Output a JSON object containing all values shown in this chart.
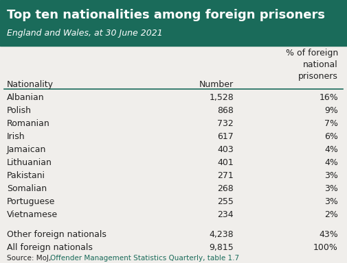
{
  "title": "Top ten nationalities among foreign prisoners",
  "subtitle": "England and Wales, at 30 June 2021",
  "header_bg_color": "#1a6b5a",
  "header_text_color": "#ffffff",
  "table_bg_color": "#f0eeeb",
  "body_text_color": "#222222",
  "col_header_nationality": "Nationality",
  "col_header_number": "Number",
  "col_header_pct": "% of foreign\nnational\nprisoners",
  "rows": [
    [
      "Albanian",
      "1,528",
      "16%"
    ],
    [
      "Polish",
      "868",
      "9%"
    ],
    [
      "Romanian",
      "732",
      "7%"
    ],
    [
      "Irish",
      "617",
      "6%"
    ],
    [
      "Jamaican",
      "403",
      "4%"
    ],
    [
      "Lithuanian",
      "401",
      "4%"
    ],
    [
      "Pakistani",
      "271",
      "3%"
    ],
    [
      "Somalian",
      "268",
      "3%"
    ],
    [
      "Portuguese",
      "255",
      "3%"
    ],
    [
      "Vietnamese",
      "234",
      "2%"
    ]
  ],
  "summary_rows": [
    [
      "Other foreign nationals",
      "4,238",
      "43%"
    ],
    [
      "All foreign nationals",
      "9,815",
      "100%"
    ]
  ],
  "source_prefix": "Source: MoJ, ",
  "source_link_text": "Offender Management Statistics Quarterly, table 1.7",
  "source_link_color": "#1a6b5a",
  "divider_color": "#1a6b5a",
  "font_size": 9,
  "title_font_size": 13,
  "subtitle_font_size": 9
}
